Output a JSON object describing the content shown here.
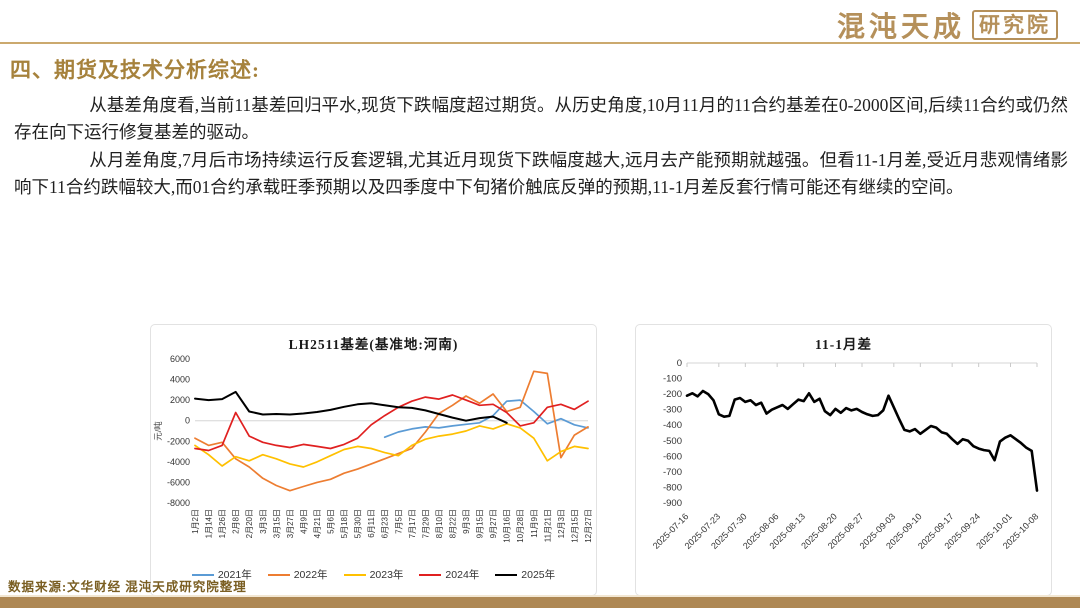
{
  "logo": {
    "text_main": "混沌天成",
    "text_boxed": "研究院"
  },
  "header": {
    "title": "四、期货及技术分析综述:"
  },
  "body": {
    "paragraph1": "从基差角度看,当前11基差回归平水,现货下跌幅度超过期货。从历史角度,10月11月的11合约基差在0-2000区间,后续11合约或仍然存在向下运行修复基差的驱动。",
    "paragraph2": "从月差角度,7月后市场持续运行反套逻辑,尤其近月现货下跌幅度越大,远月去产能预期就越强。但看11-1月差,受近月悲观情绪影响下11合约跌幅较大,而01合约承载旺季预期以及四季度中下旬猪价触底反弹的预期,11-1月差反套行情可能还有继续的空间。"
  },
  "footer": {
    "source": "数据来源:文华财经 混沌天成研究院整理"
  },
  "colors": {
    "accent_gold": "#A6823C",
    "logo_gold": "#B5905A",
    "rule_gold": "#CBA96E",
    "bottom_bar": "#AE8854",
    "series_2021": "#5B9BD5",
    "series_2022": "#ED7D31",
    "series_2023": "#FFC000",
    "series_2024": "#E02020",
    "series_2025": "#000000"
  },
  "chart_data": [
    {
      "type": "line",
      "title": "LH2511基差(基准地:河南)",
      "xlabel": "",
      "ylabel": "元/吨",
      "ylim": [
        -8000,
        6000
      ],
      "yticks": [
        6000,
        4000,
        2000,
        0,
        -2000,
        -4000,
        -6000,
        -8000
      ],
      "grid": "zero-line-only",
      "legend_position": "bottom",
      "x_label_rotation": -90,
      "categories": [
        "1月2日",
        "1月14日",
        "1月26日",
        "2月8日",
        "2月20日",
        "3月3日",
        "3月15日",
        "3月27日",
        "4月9日",
        "4月21日",
        "5月6日",
        "5月18日",
        "5月30日",
        "6月11日",
        "6月23日",
        "7月5日",
        "7月17日",
        "7月29日",
        "8月10日",
        "8月22日",
        "9月3日",
        "9月15日",
        "9月27日",
        "10月16日",
        "10月28日",
        "11月9日",
        "11月21日",
        "12月3日",
        "12月15日",
        "12月27日"
      ],
      "series": [
        {
          "name": "2021年",
          "color": "#5B9BD5",
          "values": [
            null,
            null,
            null,
            null,
            null,
            null,
            null,
            null,
            null,
            null,
            null,
            null,
            null,
            null,
            -1600,
            -1100,
            -800,
            -600,
            -700,
            -500,
            -350,
            -200,
            500,
            1900,
            2000,
            900,
            -300,
            200,
            -400,
            -700
          ]
        },
        {
          "name": "2022年",
          "color": "#ED7D31",
          "values": [
            -1700,
            -2400,
            -2100,
            -3700,
            -4500,
            -5600,
            -6300,
            -6800,
            -6400,
            -6000,
            -5700,
            -5100,
            -4700,
            -4200,
            -3700,
            -3200,
            -2700,
            -1100,
            700,
            1500,
            2400,
            1700,
            2600,
            900,
            1300,
            4800,
            4600,
            -3600,
            -1400,
            -600
          ]
        },
        {
          "name": "2023年",
          "color": "#FFC000",
          "values": [
            -2400,
            -3300,
            -4400,
            -3500,
            -3900,
            -3300,
            -3700,
            -4200,
            -4500,
            -4000,
            -3400,
            -2800,
            -2500,
            -2700,
            -3100,
            -3400,
            -2400,
            -1800,
            -1500,
            -1300,
            -1000,
            -500,
            -800,
            -300,
            -700,
            -1700,
            -3900,
            -3000,
            -2500,
            -2700
          ]
        },
        {
          "name": "2024年",
          "color": "#E02020",
          "values": [
            -2700,
            -2900,
            -2400,
            800,
            -1500,
            -2100,
            -2400,
            -2600,
            -2300,
            -2500,
            -2700,
            -2300,
            -1700,
            -400,
            500,
            1300,
            1900,
            2300,
            2100,
            2500,
            2000,
            1500,
            1600,
            800,
            -500,
            -200,
            1300,
            1600,
            1100,
            1900
          ]
        },
        {
          "name": "2025年",
          "color": "#000000",
          "width": 2,
          "values": [
            2150,
            2000,
            2100,
            2800,
            900,
            600,
            650,
            600,
            700,
            850,
            1050,
            1350,
            1600,
            1700,
            1500,
            1300,
            1250,
            1000,
            650,
            300,
            0,
            250,
            400,
            -200,
            null,
            null,
            null,
            null,
            null,
            null
          ]
        }
      ]
    },
    {
      "type": "line",
      "title": "11-1月差",
      "xlabel": "",
      "ylabel": "",
      "ylim": [
        -900,
        0
      ],
      "yticks": [
        0,
        -100,
        -200,
        -300,
        -400,
        -500,
        -600,
        -700,
        -800,
        -900
      ],
      "grid": "zero-line-only",
      "legend_position": "none",
      "x_label_rotation": -45,
      "tick_marks": true,
      "x_labels": [
        "2025-07-16",
        "2025-07-23",
        "2025-07-30",
        "2025-08-06",
        "2025-08-13",
        "2025-08-20",
        "2025-08-27",
        "2025-09-03",
        "2025-09-10",
        "2025-09-17",
        "2025-09-24",
        "2025-10-01",
        "2025-10-08"
      ],
      "series": [
        {
          "name": "11-1月差",
          "color": "#000000",
          "width": 2.6,
          "values": [
            -210,
            -195,
            -215,
            -180,
            -200,
            -240,
            -330,
            -345,
            -340,
            -235,
            -225,
            -250,
            -240,
            -270,
            -255,
            -325,
            -300,
            -285,
            -270,
            -295,
            -265,
            -235,
            -245,
            -195,
            -250,
            -230,
            -310,
            -335,
            -295,
            -320,
            -290,
            -305,
            -295,
            -315,
            -330,
            -340,
            -335,
            -305,
            -210,
            -285,
            -360,
            -430,
            -440,
            -425,
            -455,
            -430,
            -405,
            -415,
            -445,
            -455,
            -490,
            -520,
            -490,
            -500,
            -535,
            -550,
            -560,
            -565,
            -625,
            -505,
            -480,
            -465,
            -490,
            -515,
            -545,
            -565,
            -820
          ]
        }
      ]
    }
  ]
}
